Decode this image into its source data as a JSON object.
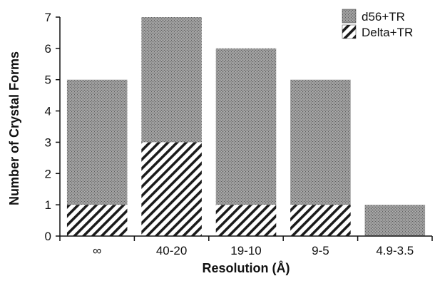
{
  "chart_data": {
    "type": "bar",
    "stacked": true,
    "title": "",
    "xlabel": "Resolution (Å)",
    "ylabel": "Number of Crystal Forms",
    "categories": [
      "∞",
      "40-20",
      "19-10",
      "9-5",
      "4.9-3.5"
    ],
    "series": [
      {
        "name": "Delta+TR",
        "values": [
          1,
          3,
          1,
          1,
          0
        ],
        "fill": "diagonal-hatch"
      },
      {
        "name": "d56+TR",
        "values": [
          4,
          4,
          5,
          4,
          1
        ],
        "fill": "stipple-gray"
      }
    ],
    "legend_order": [
      "d56+TR",
      "Delta+TR"
    ],
    "ylim": [
      0,
      7
    ],
    "yticks": [
      0,
      1,
      2,
      3,
      4,
      5,
      6,
      7
    ],
    "grid": false,
    "legend_position": "top-right",
    "colors": {
      "stipple": "#8c8c8c",
      "hatch": "#1a1a1a",
      "axis": "#111111"
    }
  }
}
